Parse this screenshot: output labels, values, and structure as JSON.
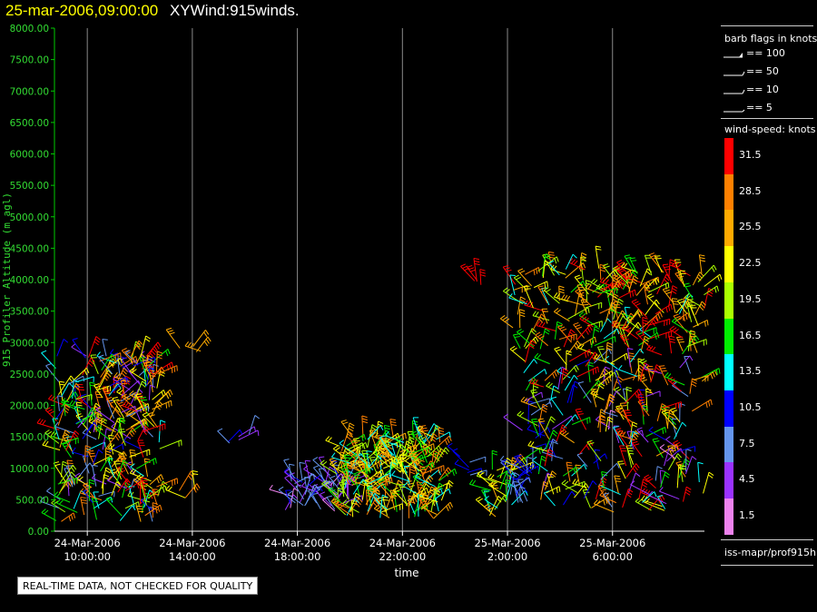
{
  "header": {
    "date": "25-mar-2006,09:00:00",
    "title": "XYWind:915winds."
  },
  "quality_note": "REAL-TIME DATA, NOT CHECKED FOR QUALITY",
  "legend": {
    "barb_title": "barb flags in knots",
    "flags": [
      "== 100",
      "== 50",
      "== 10",
      "== 5"
    ],
    "speed_title": "wind-speed: knots",
    "speed_labels": [
      "31.5",
      "28.5",
      "25.5",
      "22.5",
      "19.5",
      "16.5",
      "13.5",
      "10.5",
      "7.5",
      "4.5",
      "1.5"
    ],
    "speed_colors": [
      "#ff0000",
      "#ff8000",
      "#ffaa00",
      "#ffff00",
      "#aaff00",
      "#00ee00",
      "#00ffff",
      "#0000ff",
      "#6495ed",
      "#9a32ff",
      "#ee82ee"
    ],
    "source": "iss-mapr/prof915h"
  },
  "chart_data": {
    "type": "wind-barb time-height",
    "ylabel": "915 Profiler Altitude (m agl)",
    "xlabel": "time",
    "ylim": [
      0,
      8000
    ],
    "y_ticks": [
      "0.00",
      "500.00",
      "1000.00",
      "1500.00",
      "2000.00",
      "2500.00",
      "3000.00",
      "3500.00",
      "4000.00",
      "4500.00",
      "5000.00",
      "5500.00",
      "6000.00",
      "6500.00",
      "7000.00",
      "7500.00",
      "8000.00"
    ],
    "x_ticks": [
      {
        "date": "24-Mar-2006",
        "time": "10:00:00",
        "hour": 10
      },
      {
        "date": "24-Mar-2006",
        "time": "14:00:00",
        "hour": 14
      },
      {
        "date": "24-Mar-2006",
        "time": "18:00:00",
        "hour": 18
      },
      {
        "date": "24-Mar-2006",
        "time": "22:00:00",
        "hour": 22
      },
      {
        "date": "25-Mar-2006",
        "time": "2:00:00",
        "hour": 26
      },
      {
        "date": "25-Mar-2006",
        "time": "6:00:00",
        "hour": 30
      }
    ],
    "x_range_hours": [
      8.75,
      33.5
    ],
    "grid_x": true,
    "wind_clusters": [
      {
        "t0": 8.8,
        "t1": 12.8,
        "h0": 150,
        "h1": 2800,
        "speeds": [
          4,
          34
        ],
        "count": 260
      },
      {
        "t0": 13.5,
        "t1": 14.1,
        "h0": 500,
        "h1": 650,
        "speeds": [
          20,
          30
        ],
        "count": 4
      },
      {
        "t0": 13.5,
        "t1": 14.4,
        "h0": 2850,
        "h1": 2950,
        "speeds": [
          24,
          30
        ],
        "count": 4
      },
      {
        "t0": 15.0,
        "t1": 16.2,
        "h0": 1300,
        "h1": 1550,
        "speeds": [
          4,
          24
        ],
        "count": 5
      },
      {
        "t0": 17.5,
        "t1": 20.0,
        "h0": 300,
        "h1": 900,
        "speeds": [
          2,
          10
        ],
        "count": 55
      },
      {
        "t0": 19.5,
        "t1": 23.5,
        "h0": 200,
        "h1": 1500,
        "speeds": [
          12,
          30
        ],
        "count": 230
      },
      {
        "t0": 24.0,
        "t1": 24.7,
        "h0": 850,
        "h1": 1250,
        "speeds": [
          8,
          12
        ],
        "count": 6
      },
      {
        "t0": 24.6,
        "t1": 25.2,
        "h0": 3900,
        "h1": 4000,
        "speeds": [
          30,
          34
        ],
        "count": 4
      },
      {
        "t0": 25.3,
        "t1": 26.2,
        "h0": 200,
        "h1": 1000,
        "speeds": [
          14,
          28
        ],
        "count": 26
      },
      {
        "t0": 26.0,
        "t1": 27.0,
        "h0": 400,
        "h1": 1100,
        "speeds": [
          6,
          12
        ],
        "count": 18
      },
      {
        "t0": 26.2,
        "t1": 33.5,
        "h0": 2800,
        "h1": 4200,
        "speeds": [
          14,
          34
        ],
        "count": 180
      },
      {
        "t0": 26.5,
        "t1": 33.5,
        "h0": 300,
        "h1": 2700,
        "speeds": [
          2,
          34
        ],
        "count": 220
      }
    ]
  }
}
